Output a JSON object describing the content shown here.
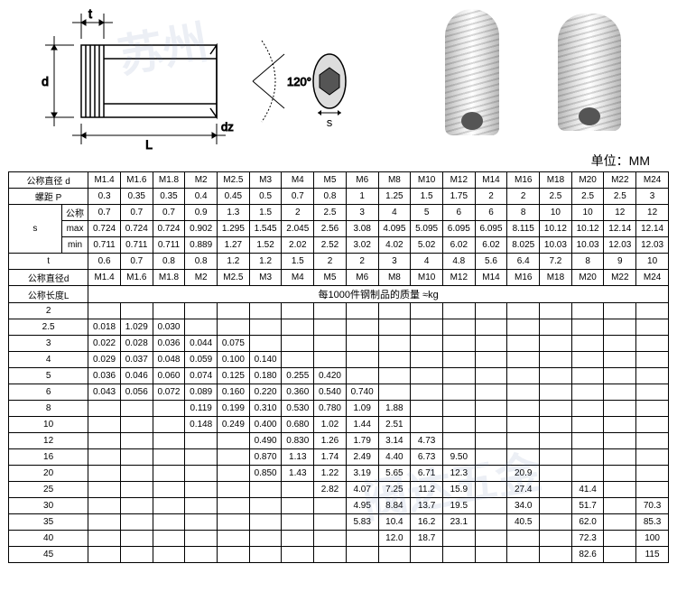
{
  "unit": "单位：MM",
  "watermarks": {
    "wm1": "苏州",
    "wm2": "",
    "wm3": "阀达五金"
  },
  "diagram": {
    "labels": {
      "t": "t",
      "d": "d",
      "L": "L",
      "dz": "dz",
      "s": "s",
      "angle": "120°"
    },
    "angle_deg": 120
  },
  "header_sizes": [
    "M1.4",
    "M1.6",
    "M1.8",
    "M2",
    "M2.5",
    "M3",
    "M4",
    "M5",
    "M6",
    "M8",
    "M10",
    "M12",
    "M14",
    "M16",
    "M18",
    "M20",
    "M22",
    "M24"
  ],
  "rows_top": {
    "diameter_label": "公称直径 d",
    "pitch_label": "螺距 P",
    "pitch": [
      "0.3",
      "0.35",
      "0.35",
      "0.4",
      "0.45",
      "0.5",
      "0.7",
      "0.8",
      "1",
      "1.25",
      "1.5",
      "1.75",
      "2",
      "2",
      "2.5",
      "2.5",
      "2.5",
      "3"
    ],
    "s_label": "s",
    "s_nom_label": "公称",
    "s_nom": [
      "0.7",
      "0.7",
      "0.7",
      "0.9",
      "1.3",
      "1.5",
      "2",
      "2.5",
      "3",
      "4",
      "5",
      "6",
      "6",
      "8",
      "10",
      "10",
      "12",
      "12"
    ],
    "s_max_label": "max",
    "s_max": [
      "0.724",
      "0.724",
      "0.724",
      "0.902",
      "1.295",
      "1.545",
      "2.045",
      "2.56",
      "3.08",
      "4.095",
      "5.095",
      "6.095",
      "6.095",
      "8.115",
      "10.12",
      "10.12",
      "12.14",
      "12.14"
    ],
    "s_min_label": "min",
    "s_min": [
      "0.711",
      "0.711",
      "0.711",
      "0.889",
      "1.27",
      "1.52",
      "2.02",
      "2.52",
      "3.02",
      "4.02",
      "5.02",
      "6.02",
      "6.02",
      "8.025",
      "10.03",
      "10.03",
      "12.03",
      "12.03"
    ],
    "t_label": "t",
    "t": [
      "0.6",
      "0.7",
      "0.8",
      "0.8",
      "1.2",
      "1.2",
      "1.5",
      "2",
      "2",
      "3",
      "4",
      "4.8",
      "5.6",
      "6.4",
      "7.2",
      "8",
      "9",
      "10"
    ]
  },
  "mass_section": {
    "diameter_label": "公称直径d",
    "length_label": "公称长度L",
    "mass_header": "每1000件钢制品的质量 ≈kg",
    "lengths": [
      "2",
      "2.5",
      "3",
      "4",
      "5",
      "6",
      "8",
      "10",
      "12",
      "16",
      "20",
      "25",
      "30",
      "35",
      "40",
      "45"
    ],
    "mass_rows": [
      [
        "",
        "",
        "",
        "",
        "",
        "",
        "",
        "",
        "",
        "",
        "",
        "",
        "",
        "",
        "",
        "",
        "",
        ""
      ],
      [
        "0.018",
        "1.029",
        "0.030",
        "",
        "",
        "",
        "",
        "",
        "",
        "",
        "",
        "",
        "",
        "",
        "",
        "",
        "",
        ""
      ],
      [
        "0.022",
        "0.028",
        "0.036",
        "0.044",
        "0.075",
        "",
        "",
        "",
        "",
        "",
        "",
        "",
        "",
        "",
        "",
        "",
        "",
        ""
      ],
      [
        "0.029",
        "0.037",
        "0.048",
        "0.059",
        "0.100",
        "0.140",
        "",
        "",
        "",
        "",
        "",
        "",
        "",
        "",
        "",
        "",
        "",
        ""
      ],
      [
        "0.036",
        "0.046",
        "0.060",
        "0.074",
        "0.125",
        "0.180",
        "0.255",
        "0.420",
        "",
        "",
        "",
        "",
        "",
        "",
        "",
        "",
        "",
        ""
      ],
      [
        "0.043",
        "0.056",
        "0.072",
        "0.089",
        "0.160",
        "0.220",
        "0.360",
        "0.540",
        "0.740",
        "",
        "",
        "",
        "",
        "",
        "",
        "",
        "",
        ""
      ],
      [
        "",
        "",
        "",
        "0.119",
        "0.199",
        "0.310",
        "0.530",
        "0.780",
        "1.09",
        "1.88",
        "",
        "",
        "",
        "",
        "",
        "",
        "",
        ""
      ],
      [
        "",
        "",
        "",
        "0.148",
        "0.249",
        "0.400",
        "0.680",
        "1.02",
        "1.44",
        "2.51",
        "",
        "",
        "",
        "",
        "",
        "",
        "",
        ""
      ],
      [
        "",
        "",
        "",
        "",
        "",
        "0.490",
        "0.830",
        "1.26",
        "1.79",
        "3.14",
        "4.73",
        "",
        "",
        "",
        "",
        "",
        "",
        ""
      ],
      [
        "",
        "",
        "",
        "",
        "",
        "0.870",
        "1.13",
        "1.74",
        "2.49",
        "4.40",
        "6.73",
        "9.50",
        "",
        "",
        "",
        "",
        "",
        ""
      ],
      [
        "",
        "",
        "",
        "",
        "",
        "0.850",
        "1.43",
        "1.22",
        "3.19",
        "5.65",
        "6.71",
        "12.3",
        "",
        "20.9",
        "",
        "",
        "",
        ""
      ],
      [
        "",
        "",
        "",
        "",
        "",
        "",
        "",
        "2.82",
        "4.07",
        "7.25",
        "11.2",
        "15.9",
        "",
        "27.4",
        "",
        "41.4",
        "",
        ""
      ],
      [
        "",
        "",
        "",
        "",
        "",
        "",
        "",
        "",
        "4.95",
        "8.84",
        "13.7",
        "19.5",
        "",
        "34.0",
        "",
        "51.7",
        "",
        "70.3"
      ],
      [
        "",
        "",
        "",
        "",
        "",
        "",
        "",
        "",
        "5.83",
        "10.4",
        "16.2",
        "23.1",
        "",
        "40.5",
        "",
        "62.0",
        "",
        "85.3"
      ],
      [
        "",
        "",
        "",
        "",
        "",
        "",
        "",
        "",
        "",
        "12.0",
        "18.7",
        "",
        "",
        "",
        "",
        "72.3",
        "",
        "100"
      ],
      [
        "",
        "",
        "",
        "",
        "",
        "",
        "",
        "",
        "",
        "",
        "",
        "",
        "",
        "",
        "",
        "82.6",
        "",
        "115"
      ]
    ]
  }
}
